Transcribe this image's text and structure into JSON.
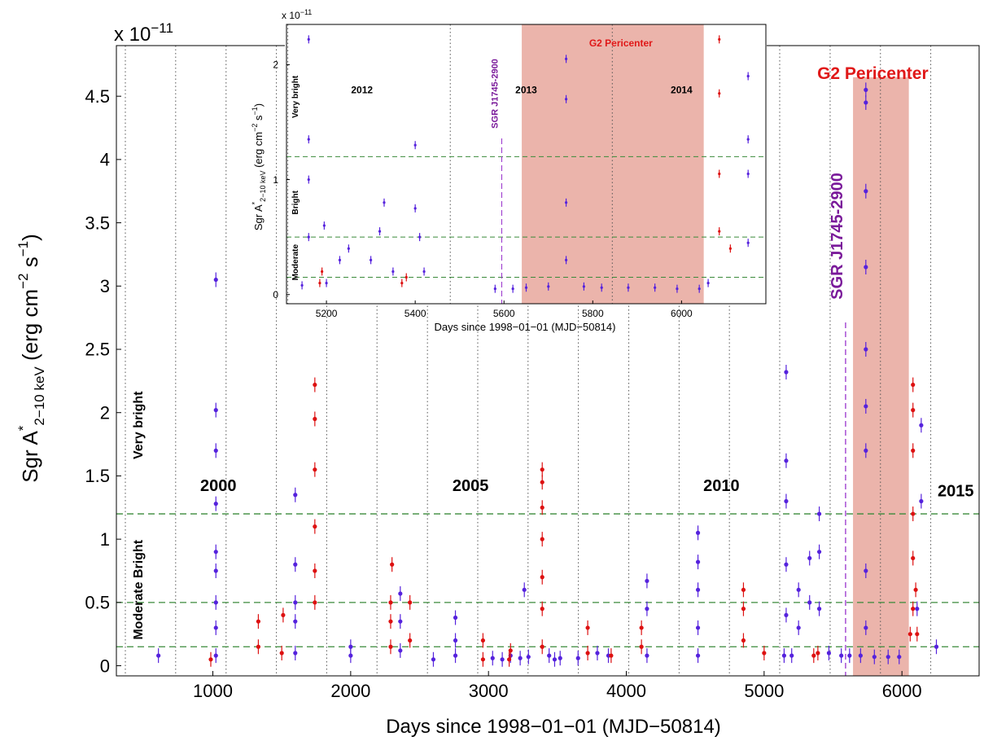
{
  "chart_data": [
    {
      "type": "scatter",
      "exponent_label": "x 10",
      "exponent_power": "−11",
      "xlabel": "Days since 1998−01−01 (MJD−50814)",
      "ylabel": "Sgr A",
      "ylabel_sup": "*",
      "ylabel_sub": "2−10 keV",
      "ylabel_unit": " (erg cm",
      "ylabel_unit_sup1": "−2",
      "ylabel_unit_mid": " s",
      "ylabel_unit_sup2": "−1",
      "ylabel_close": ")",
      "xlim": [
        300,
        6560
      ],
      "ylim": [
        -0.08,
        4.9
      ],
      "xticks": [
        1000,
        2000,
        3000,
        4000,
        5000,
        6000
      ],
      "xticklabels": [
        "1000",
        "2000",
        "3000",
        "4000",
        "5000",
        "6000"
      ],
      "yticks": [
        0,
        0.5,
        1,
        1.5,
        2,
        2.5,
        3,
        3.5,
        4,
        4.5
      ],
      "yticklabels": [
        "0",
        "0.5",
        "1",
        "1.5",
        "2",
        "2.5",
        "3",
        "3.5",
        "4",
        "4.5"
      ],
      "thresholds": [
        0.15,
        0.5,
        1.2
      ],
      "year_lines": [
        365,
        730,
        1096,
        1461,
        1826,
        2191,
        2557,
        2922,
        3287,
        3652,
        4018,
        4383,
        4748,
        5113,
        5479,
        5844,
        6209
      ],
      "year_labels": [
        {
          "text": "2000",
          "x": 1040,
          "y": 1.38
        },
        {
          "text": "2005",
          "x": 2870,
          "y": 1.38
        },
        {
          "text": "2010",
          "x": 4690,
          "y": 1.38
        },
        {
          "text": "2015",
          "x": 6390,
          "y": 1.34
        }
      ],
      "state_labels": [
        {
          "text": "Very bright",
          "y": 1.9
        },
        {
          "text": "Moderate Bright",
          "y": 0.6
        }
      ],
      "magnetar": {
        "label": "SGR J1745-2900",
        "day": 5591
      },
      "pericenter": {
        "label": "G2 Pericenter",
        "start": 5645,
        "end": 6050,
        "top": 4.65
      },
      "series": [
        {
          "color": "#5522dd",
          "points": [
            [
              605,
              0.08
            ],
            [
              1022,
              0.08
            ],
            [
              1022,
              0.3
            ],
            [
              1022,
              0.5
            ],
            [
              1022,
              0.75
            ],
            [
              1022,
              0.9
            ],
            [
              1022,
              1.28
            ],
            [
              1022,
              1.7
            ],
            [
              1022,
              2.02
            ],
            [
              1022,
              3.05
            ],
            [
              1598,
              0.1
            ],
            [
              1598,
              0.35
            ],
            [
              1598,
              0.5
            ],
            [
              1598,
              0.8
            ],
            [
              1598,
              1.35
            ],
            [
              2000,
              0.08
            ],
            [
              2000,
              0.15
            ],
            [
              2360,
              0.12
            ],
            [
              2360,
              0.35
            ],
            [
              2360,
              0.57
            ],
            [
              2600,
              0.05
            ],
            [
              2760,
              0.08
            ],
            [
              2760,
              0.2
            ],
            [
              2760,
              0.38
            ],
            [
              3030,
              0.06
            ],
            [
              3100,
              0.05
            ],
            [
              3160,
              0.08
            ],
            [
              3230,
              0.06
            ],
            [
              3260,
              0.6
            ],
            [
              3290,
              0.07
            ],
            [
              3440,
              0.08
            ],
            [
              3480,
              0.05
            ],
            [
              3520,
              0.06
            ],
            [
              3650,
              0.06
            ],
            [
              3790,
              0.1
            ],
            [
              3870,
              0.08
            ],
            [
              4150,
              0.08
            ],
            [
              4150,
              0.45
            ],
            [
              4150,
              0.67
            ],
            [
              4520,
              0.08
            ],
            [
              4520,
              0.3
            ],
            [
              4520,
              0.6
            ],
            [
              4520,
              0.82
            ],
            [
              4520,
              1.05
            ],
            [
              5145,
              0.08
            ],
            [
              5160,
              0.4
            ],
            [
              5160,
              0.8
            ],
            [
              5160,
              1.3
            ],
            [
              5160,
              1.62
            ],
            [
              5160,
              2.32
            ],
            [
              5200,
              0.08
            ],
            [
              5250,
              0.3
            ],
            [
              5250,
              0.6
            ],
            [
              5330,
              0.5
            ],
            [
              5330,
              0.85
            ],
            [
              5400,
              0.45
            ],
            [
              5400,
              0.9
            ],
            [
              5400,
              1.2
            ],
            [
              5470,
              0.1
            ],
            [
              5560,
              0.08
            ],
            [
              5620,
              0.08
            ],
            [
              5700,
              0.08
            ],
            [
              5738,
              0.3
            ],
            [
              5738,
              0.75
            ],
            [
              5738,
              1.7
            ],
            [
              5738,
              2.05
            ],
            [
              5738,
              2.5
            ],
            [
              5738,
              3.15
            ],
            [
              5738,
              3.75
            ],
            [
              5738,
              4.45
            ],
            [
              5738,
              4.55
            ],
            [
              5800,
              0.07
            ],
            [
              5900,
              0.07
            ],
            [
              5980,
              0.07
            ],
            [
              6110,
              0.45
            ],
            [
              6140,
              1.3
            ],
            [
              6140,
              1.9
            ],
            [
              6250,
              0.15
            ]
          ]
        },
        {
          "color": "#dd1111",
          "points": [
            [
              985,
              0.05
            ],
            [
              1330,
              0.15
            ],
            [
              1330,
              0.35
            ],
            [
              1500,
              0.1
            ],
            [
              1510,
              0.4
            ],
            [
              1740,
              0.5
            ],
            [
              1740,
              0.75
            ],
            [
              1740,
              1.1
            ],
            [
              1740,
              1.55
            ],
            [
              1740,
              1.95
            ],
            [
              1740,
              2.22
            ],
            [
              2290,
              0.15
            ],
            [
              2290,
              0.35
            ],
            [
              2290,
              0.5
            ],
            [
              2300,
              0.8
            ],
            [
              2430,
              0.2
            ],
            [
              2430,
              0.5
            ],
            [
              2960,
              0.05
            ],
            [
              2960,
              0.2
            ],
            [
              3150,
              0.05
            ],
            [
              3160,
              0.12
            ],
            [
              3390,
              0.15
            ],
            [
              3390,
              0.45
            ],
            [
              3390,
              0.7
            ],
            [
              3390,
              1.0
            ],
            [
              3390,
              1.25
            ],
            [
              3390,
              1.45
            ],
            [
              3390,
              1.55
            ],
            [
              3720,
              0.1
            ],
            [
              3720,
              0.3
            ],
            [
              3890,
              0.08
            ],
            [
              4110,
              0.15
            ],
            [
              4110,
              0.3
            ],
            [
              4850,
              0.2
            ],
            [
              4850,
              0.45
            ],
            [
              4850,
              0.6
            ],
            [
              5000,
              0.1
            ],
            [
              5360,
              0.08
            ],
            [
              5390,
              0.1
            ],
            [
              6060,
              0.25
            ],
            [
              6080,
              0.45
            ],
            [
              6080,
              0.85
            ],
            [
              6080,
              1.2
            ],
            [
              6080,
              1.7
            ],
            [
              6080,
              2.02
            ],
            [
              6080,
              2.22
            ],
            [
              6100,
              0.6
            ],
            [
              6110,
              0.25
            ]
          ]
        }
      ]
    },
    {
      "type": "scatter",
      "exponent_label": "x 10",
      "exponent_power": "−11",
      "xlabel": "Days since 1998−01−01 (MJD−50814)",
      "ylabel": "Sgr A",
      "ylabel_sup": "*",
      "ylabel_sub": "2−10 keV",
      "ylabel_unit": " (erg cm",
      "ylabel_unit_sup1": "−2",
      "ylabel_unit_mid": " s",
      "ylabel_unit_sup2": "−1",
      "ylabel_close": ")",
      "xlim": [
        5110,
        6190
      ],
      "ylim": [
        -0.08,
        2.35
      ],
      "xticks": [
        5200,
        5400,
        5600,
        5800,
        6000
      ],
      "xticklabels": [
        "5200",
        "5400",
        "5600",
        "5800",
        "6000"
      ],
      "yticks": [
        0,
        1,
        2
      ],
      "yticklabels": [
        "0",
        "1",
        "2"
      ],
      "thresholds": [
        0.15,
        0.5,
        1.2
      ],
      "year_lines": [
        5113,
        5479,
        5844
      ],
      "year_labels": [
        {
          "text": "2012",
          "x": 5280,
          "y": 1.75
        },
        {
          "text": "2013",
          "x": 5650,
          "y": 1.75
        },
        {
          "text": "2014",
          "x": 6000,
          "y": 1.75
        }
      ],
      "state_labels": [
        {
          "text": "Very bright",
          "y": 1.72
        },
        {
          "text": "Bright",
          "y": 0.8
        },
        {
          "text": "Moderate",
          "y": 0.28
        }
      ],
      "magnetar": {
        "label": "SGR J1745-2900",
        "day": 5595
      },
      "pericenter": {
        "label": "G2 Pericenter",
        "start": 5640,
        "end": 6050,
        "top": 2.35
      },
      "series": [
        {
          "color": "#5522dd",
          "points": [
            [
              5145,
              0.08
            ],
            [
              5160,
              0.5
            ],
            [
              5160,
              1.0
            ],
            [
              5160,
              1.35
            ],
            [
              5160,
              2.22
            ],
            [
              5195,
              0.6
            ],
            [
              5200,
              0.1
            ],
            [
              5230,
              0.3
            ],
            [
              5250,
              0.4
            ],
            [
              5300,
              0.3
            ],
            [
              5320,
              0.55
            ],
            [
              5330,
              0.8
            ],
            [
              5350,
              0.2
            ],
            [
              5400,
              0.75
            ],
            [
              5400,
              1.3
            ],
            [
              5410,
              0.5
            ],
            [
              5420,
              0.2
            ],
            [
              5580,
              0.05
            ],
            [
              5620,
              0.05
            ],
            [
              5650,
              0.06
            ],
            [
              5700,
              0.07
            ],
            [
              5740,
              0.3
            ],
            [
              5740,
              0.8
            ],
            [
              5740,
              1.7
            ],
            [
              5740,
              2.05
            ],
            [
              5780,
              0.07
            ],
            [
              5820,
              0.06
            ],
            [
              5880,
              0.06
            ],
            [
              5940,
              0.06
            ],
            [
              5990,
              0.05
            ],
            [
              6040,
              0.05
            ],
            [
              6060,
              0.1
            ],
            [
              6150,
              0.45
            ],
            [
              6150,
              1.05
            ],
            [
              6150,
              1.35
            ],
            [
              6150,
              1.9
            ]
          ]
        },
        {
          "color": "#dd1111",
          "points": [
            [
              5185,
              0.1
            ],
            [
              5190,
              0.2
            ],
            [
              5370,
              0.1
            ],
            [
              5380,
              0.15
            ],
            [
              6085,
              0.55
            ],
            [
              6085,
              1.05
            ],
            [
              6085,
              1.75
            ],
            [
              6085,
              2.22
            ],
            [
              6110,
              0.4
            ]
          ]
        }
      ]
    }
  ]
}
